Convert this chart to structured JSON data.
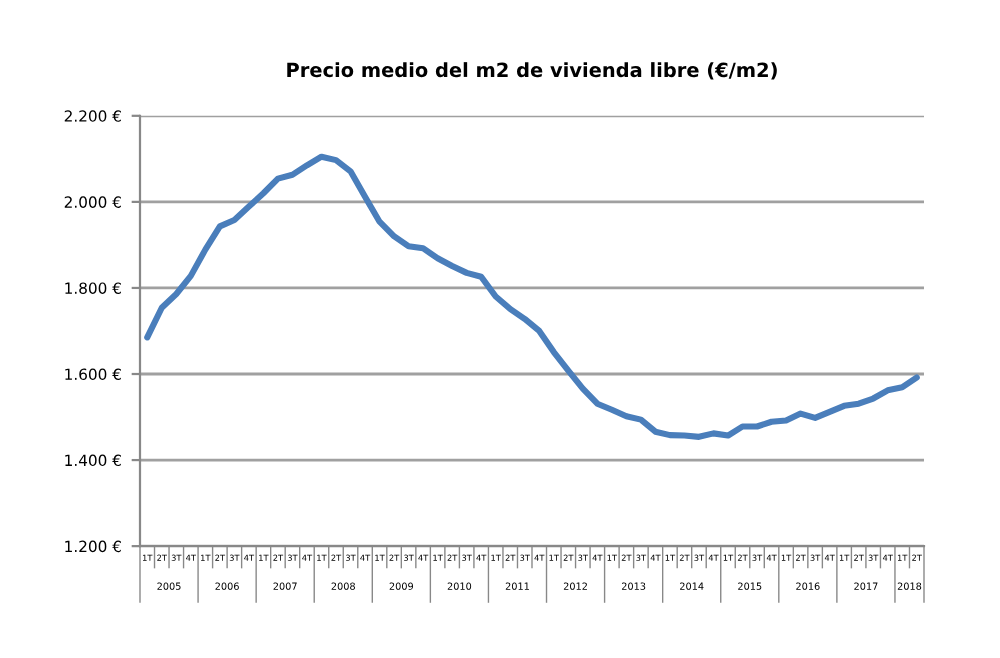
{
  "chart_data": {
    "type": "line",
    "title": "Precio medio del m2 de vivienda libre (€/m2)",
    "categories": [
      "1T",
      "2T",
      "3T",
      "4T",
      "1T",
      "2T",
      "3T",
      "4T",
      "1T",
      "2T",
      "3T",
      "4T",
      "1T",
      "2T",
      "3T",
      "4T",
      "1T",
      "2T",
      "3T",
      "4T",
      "1T",
      "2T",
      "3T",
      "4T",
      "1T",
      "2T",
      "3T",
      "4T",
      "1T",
      "2T",
      "3T",
      "4T",
      "1T",
      "2T",
      "3T",
      "4T",
      "1T",
      "2T",
      "3T",
      "4T",
      "1T",
      "2T",
      "3T",
      "4T",
      "1T",
      "2T",
      "3T",
      "4T",
      "1T",
      "2T",
      "3T",
      "4T",
      "1T",
      "2T"
    ],
    "series": [
      {
        "color": "#4a7ebb",
        "values": [
          1685,
          1754,
          1786,
          1828,
          1889,
          1943,
          1958,
          1989,
          2020,
          2054,
          2063,
          2085,
          2105,
          2097,
          2071,
          2012,
          1954,
          1920,
          1897,
          1892,
          1869,
          1851,
          1835,
          1826,
          1780,
          1751,
          1728,
          1700,
          1651,
          1608,
          1566,
          1531,
          1517,
          1502,
          1494,
          1466,
          1458,
          1457,
          1454,
          1462,
          1457,
          1478,
          1478,
          1489,
          1492,
          1508,
          1498,
          1512,
          1526,
          1531,
          1543,
          1562,
          1569,
          1592
        ]
      }
    ],
    "annotations": [
      "2005",
      "2006",
      "2007",
      "2008",
      "2009",
      "2010",
      "2011",
      "2012",
      "2013",
      "2014",
      "2015",
      "2016",
      "2017",
      "2018"
    ],
    "ylim": [
      1200,
      2200
    ],
    "yticks": [
      {
        "value": 1200,
        "label": "1.200 €"
      },
      {
        "value": 1400,
        "label": "1.400 €"
      },
      {
        "value": 1600,
        "label": "1.600 €"
      },
      {
        "value": 1800,
        "label": "1.800 €"
      },
      {
        "value": 2000,
        "label": "2.000 €"
      },
      {
        "value": 2200,
        "label": "2.200 €"
      }
    ],
    "grid": "y",
    "legend": false,
    "marker": "none",
    "line_style": "solid"
  }
}
